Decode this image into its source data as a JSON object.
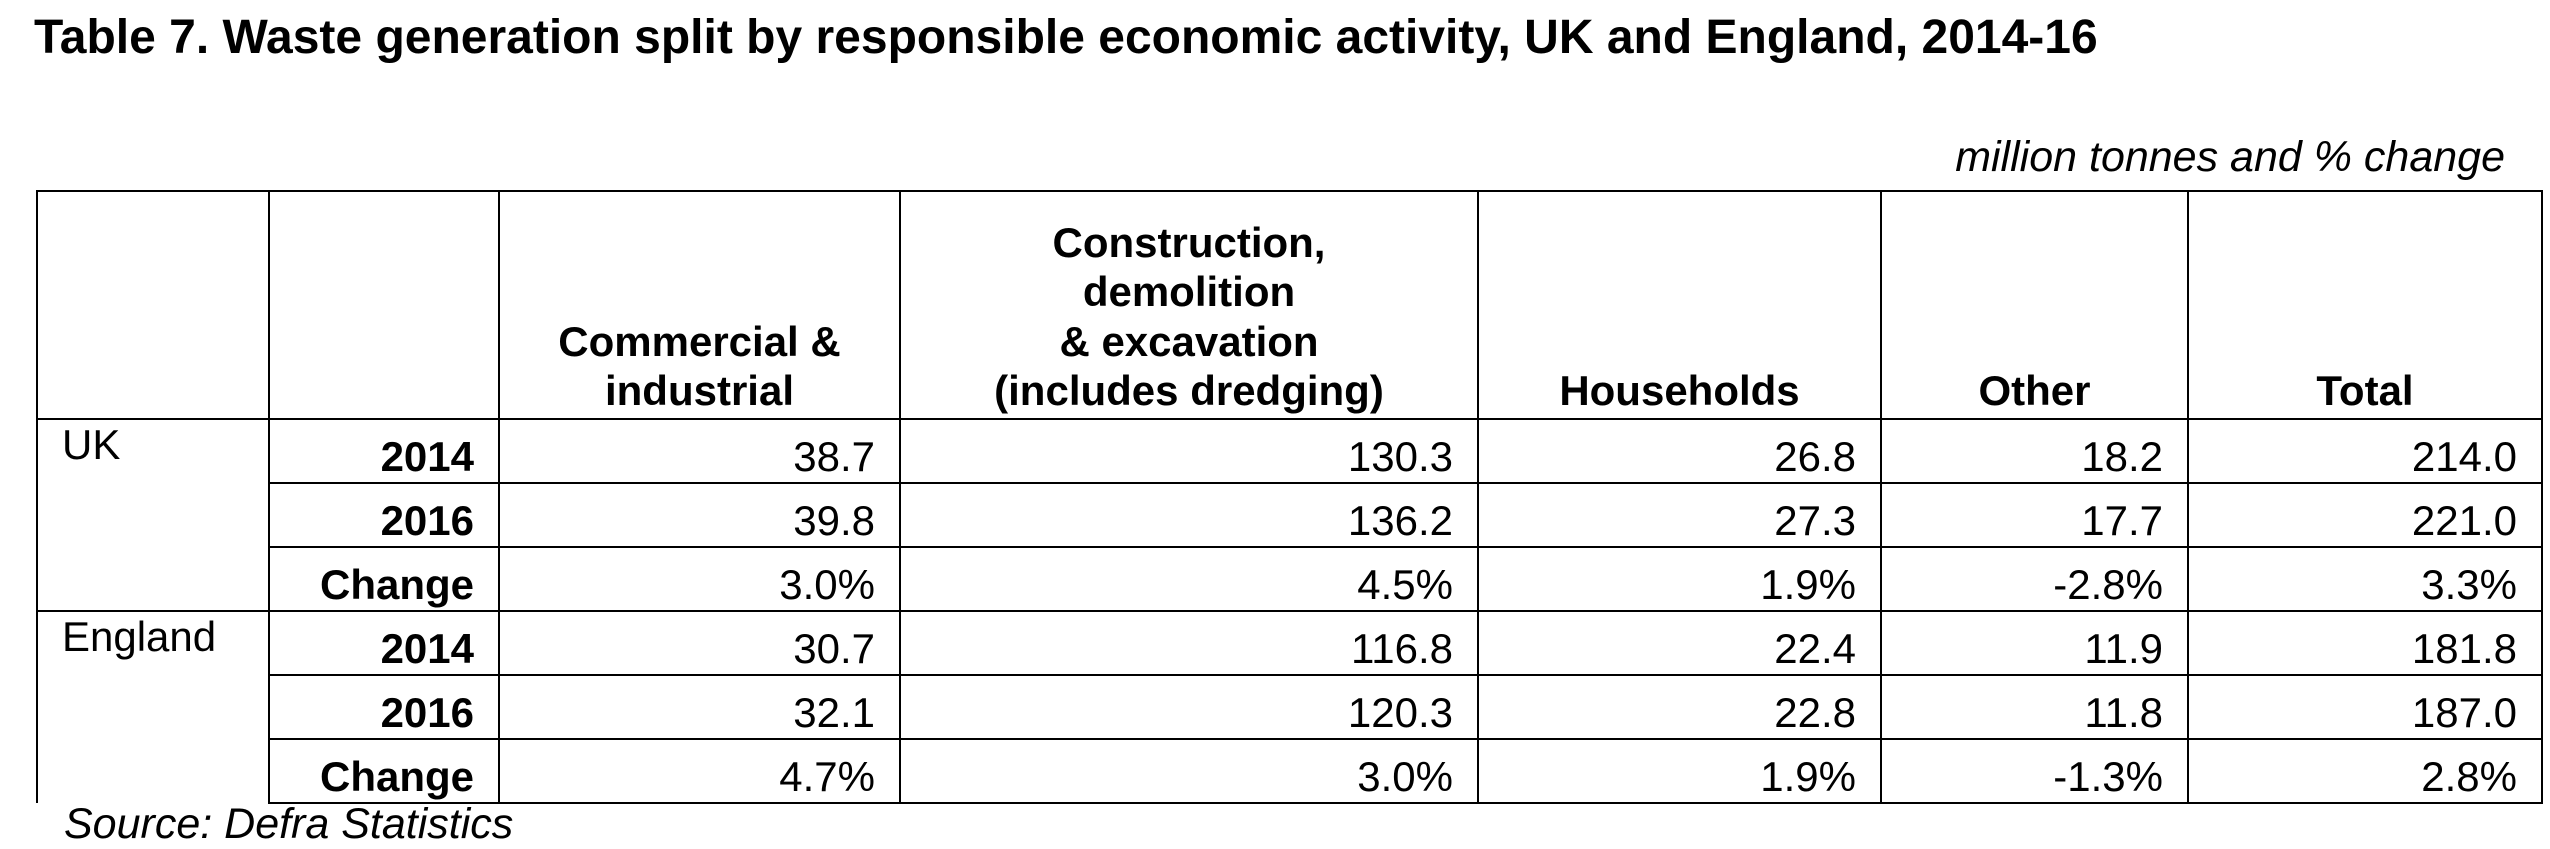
{
  "title": "Table 7. Waste generation split by responsible economic activity, UK and England, 2014-16",
  "units": "million tonnes and % change",
  "columns": {
    "c1": "Commercial & industrial",
    "c2_l1": "Construction,",
    "c2_l2": "demolition",
    "c2_l3": "& excavation",
    "c2_l4": "(includes dredging)",
    "c3": "Households",
    "c4": "Other",
    "c5": "Total"
  },
  "groups": [
    {
      "region": "UK",
      "rows": [
        {
          "label": "2014",
          "values": [
            "38.7",
            "130.3",
            "26.8",
            "18.2",
            "214.0"
          ]
        },
        {
          "label": "2016",
          "values": [
            "39.8",
            "136.2",
            "27.3",
            "17.7",
            "221.0"
          ]
        },
        {
          "label": "Change",
          "values": [
            "3.0%",
            "4.5%",
            "1.9%",
            "-2.8%",
            "3.3%"
          ]
        }
      ]
    },
    {
      "region": "England",
      "rows": [
        {
          "label": "2014",
          "values": [
            "30.7",
            "116.8",
            "22.4",
            "11.9",
            "181.8"
          ]
        },
        {
          "label": "2016",
          "values": [
            "32.1",
            "120.3",
            "22.8",
            "11.8",
            "187.0"
          ]
        },
        {
          "label": "Change",
          "values": [
            "4.7%",
            "3.0%",
            "1.9%",
            "-1.3%",
            "2.8%"
          ]
        }
      ]
    }
  ],
  "source": "Source: Defra Statistics"
}
